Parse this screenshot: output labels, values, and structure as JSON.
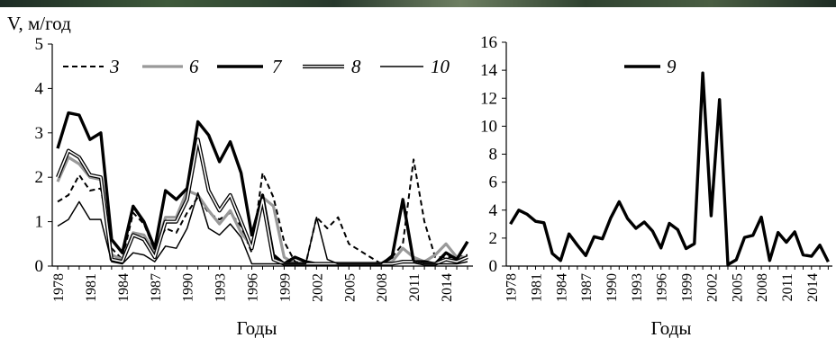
{
  "chart_data": [
    {
      "type": "line",
      "ylabel": "V, м/год",
      "xlabel": "Годы",
      "ylim": [
        0,
        5
      ],
      "xlim": [
        1977.5,
        2016.5
      ],
      "yticks": [
        0,
        1,
        2,
        3,
        4,
        5
      ],
      "xticks": [
        1978,
        1981,
        1984,
        1987,
        1990,
        1993,
        1996,
        1999,
        2002,
        2005,
        2008,
        2011,
        2014
      ],
      "legend_position": "top-left",
      "grid": false,
      "x": [
        1978,
        1979,
        1980,
        1981,
        1982,
        1983,
        1984,
        1985,
        1986,
        1987,
        1988,
        1989,
        1990,
        1991,
        1992,
        1993,
        1994,
        1995,
        1996,
        1997,
        1998,
        1999,
        2000,
        2001,
        2002,
        2003,
        2004,
        2005,
        2006,
        2007,
        2008,
        2009,
        2010,
        2011,
        2012,
        2013,
        2014,
        2015,
        2016
      ],
      "series": [
        {
          "name": "3",
          "style": "dashed",
          "color": "#000000",
          "values": [
            1.45,
            1.6,
            2.05,
            1.7,
            1.75,
            0.4,
            0.15,
            1.2,
            0.95,
            0.35,
            0.85,
            0.75,
            1.2,
            1.55,
            1.2,
            1.05,
            1.2,
            0.9,
            0.3,
            2.1,
            1.55,
            0.55,
            0.1,
            0.05,
            1.1,
            0.85,
            1.1,
            0.5,
            0.35,
            0.2,
            0.05,
            0.2,
            0.5,
            2.4,
            1.0,
            0.2,
            0.2,
            0.2,
            0.25
          ]
        },
        {
          "name": "6",
          "style": "gray",
          "color": "#999999",
          "values": [
            1.9,
            2.45,
            2.3,
            2.0,
            1.95,
            0.25,
            0.15,
            0.75,
            0.7,
            0.3,
            1.1,
            1.1,
            1.7,
            1.6,
            1.25,
            0.95,
            1.25,
            0.75,
            0.45,
            1.55,
            1.35,
            0.2,
            0.05,
            0.05,
            0.05,
            0.05,
            0.05,
            0.05,
            0.05,
            0.05,
            0.05,
            0.1,
            0.4,
            0.2,
            0.1,
            0.25,
            0.5,
            0.2,
            0.2
          ]
        },
        {
          "name": "7",
          "style": "bold",
          "color": "#000000",
          "values": [
            2.65,
            3.45,
            3.4,
            2.85,
            3.0,
            0.6,
            0.3,
            1.35,
            1.0,
            0.4,
            1.7,
            1.5,
            1.75,
            3.25,
            2.95,
            2.35,
            2.8,
            2.1,
            0.7,
            1.6,
            0.25,
            0.05,
            0.2,
            0.1,
            0.05,
            0.05,
            0.05,
            0.05,
            0.05,
            0.05,
            0.05,
            0.2,
            1.5,
            0.1,
            0.1,
            0.05,
            0.3,
            0.15,
            0.55
          ]
        },
        {
          "name": "8",
          "style": "double",
          "color": "#000000",
          "values": [
            2.0,
            2.6,
            2.45,
            2.05,
            2.0,
            0.15,
            0.1,
            0.7,
            0.6,
            0.2,
            1.0,
            1.0,
            1.5,
            2.85,
            1.7,
            1.25,
            1.6,
            1.0,
            0.4,
            1.5,
            0.15,
            0.05,
            0.05,
            0.05,
            0.05,
            0.05,
            0.05,
            0.05,
            0.05,
            0.05,
            0.05,
            0.05,
            0.1,
            0.1,
            0.05,
            0.05,
            0.15,
            0.1,
            0.2
          ]
        },
        {
          "name": "10",
          "style": "thin",
          "color": "#000000",
          "values": [
            0.9,
            1.05,
            1.45,
            1.05,
            1.05,
            0.1,
            0.05,
            0.3,
            0.25,
            0.1,
            0.45,
            0.4,
            0.85,
            1.65,
            0.85,
            0.7,
            0.95,
            0.65,
            0.05,
            0.05,
            0.05,
            0.05,
            0.05,
            0.05,
            1.1,
            0.15,
            0.05,
            0.05,
            0.05,
            0.05,
            0.05,
            0.25,
            1.4,
            0.1,
            0.05,
            0.05,
            0.05,
            0.05,
            0.1
          ]
        }
      ]
    },
    {
      "type": "line",
      "ylabel": "",
      "xlabel": "Годы",
      "ylim": [
        0,
        16
      ],
      "xlim": [
        1977.5,
        2016.5
      ],
      "yticks": [
        0,
        2,
        4,
        6,
        8,
        10,
        12,
        14,
        16
      ],
      "xticks": [
        1978,
        1981,
        1984,
        1987,
        1990,
        1993,
        1996,
        1999,
        2002,
        2005,
        2008,
        2011,
        2014
      ],
      "legend_position": "top-center",
      "grid": false,
      "x": [
        1978,
        1979,
        1980,
        1981,
        1982,
        1983,
        1984,
        1985,
        1986,
        1987,
        1988,
        1989,
        1990,
        1991,
        1992,
        1993,
        1994,
        1995,
        1996,
        1997,
        1998,
        1999,
        2000,
        2001,
        2002,
        2003,
        2004,
        2005,
        2006,
        2007,
        2008,
        2009,
        2010,
        2011,
        2012,
        2013,
        2014,
        2015,
        2016
      ],
      "series": [
        {
          "name": "9",
          "style": "bold",
          "color": "#000000",
          "values": [
            3.0,
            4.0,
            3.7,
            3.2,
            3.1,
            0.9,
            0.4,
            2.3,
            1.5,
            0.75,
            2.1,
            1.95,
            3.45,
            4.6,
            3.4,
            2.7,
            3.15,
            2.5,
            1.3,
            3.05,
            2.6,
            1.25,
            1.6,
            13.8,
            3.6,
            11.9,
            0.1,
            0.45,
            2.05,
            2.2,
            3.5,
            0.4,
            2.4,
            1.7,
            2.45,
            0.8,
            0.7,
            1.5,
            0.3
          ]
        }
      ]
    }
  ]
}
